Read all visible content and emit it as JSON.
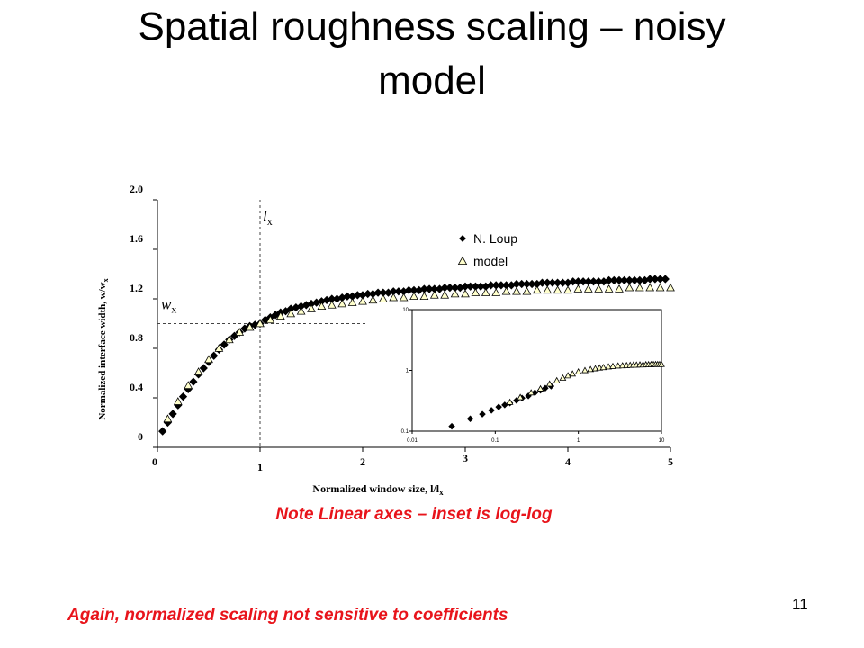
{
  "slide": {
    "title_line1": "Spatial roughness scaling – noisy",
    "title_line2": "model",
    "note": "Note Linear axes – inset is log-log",
    "footer": "Again, normalized scaling not sensitive to coefficients",
    "page_number": "11"
  },
  "colors": {
    "accent": "#e8141b",
    "marker_fill_model": "#ffffcc",
    "marker_fill_loup": "#000000"
  },
  "chart_data": [
    {
      "type": "scatter",
      "title": "",
      "xlabel": "Normalized window size, l/l",
      "xlabel_sub": "x",
      "ylabel": "Normalized interface width, w/w",
      "ylabel_sub": "x",
      "xlim": [
        0,
        5
      ],
      "ylim": [
        0,
        2
      ],
      "x_ticks": [
        0,
        1,
        2,
        3,
        4,
        5
      ],
      "x_tick_labels": [
        "0",
        "1",
        "2",
        "3",
        "4",
        "5"
      ],
      "y_ticks": [
        0,
        0.4,
        0.8,
        1.2,
        1.6,
        2.0
      ],
      "y_tick_labels": [
        "0",
        "0.4",
        "0.8",
        "1.2",
        "1.6",
        "2.0"
      ],
      "grid": false,
      "legend_position": "top-right",
      "reference_lines": {
        "vertical_x": 1,
        "vertical_label": "l",
        "vertical_label_sub": "x",
        "horizontal_y": 1,
        "horizontal_label": "w",
        "horizontal_label_sub": "x"
      },
      "series": [
        {
          "name": "N. Loup",
          "marker": "diamond",
          "x": [
            0.05,
            0.1,
            0.15,
            0.2,
            0.25,
            0.3,
            0.35,
            0.4,
            0.45,
            0.5,
            0.55,
            0.6,
            0.65,
            0.7,
            0.75,
            0.8,
            0.85,
            0.9,
            0.95,
            1.0,
            1.05,
            1.1,
            1.15,
            1.2,
            1.25,
            1.3,
            1.35,
            1.4,
            1.45,
            1.5,
            1.55,
            1.6,
            1.65,
            1.7,
            1.75,
            1.8,
            1.85,
            1.9,
            1.95,
            2.0,
            2.05,
            2.1,
            2.15,
            2.2,
            2.25,
            2.3,
            2.35,
            2.4,
            2.45,
            2.5,
            2.55,
            2.6,
            2.65,
            2.7,
            2.75,
            2.8,
            2.85,
            2.9,
            2.95,
            3.0,
            3.05,
            3.1,
            3.15,
            3.2,
            3.25,
            3.3,
            3.35,
            3.4,
            3.45,
            3.5,
            3.55,
            3.6,
            3.65,
            3.7,
            3.75,
            3.8,
            3.85,
            3.9,
            3.95,
            4.0,
            4.05,
            4.1,
            4.15,
            4.2,
            4.25,
            4.3,
            4.35,
            4.4,
            4.45,
            4.5,
            4.55,
            4.6,
            4.65,
            4.7,
            4.75,
            4.8,
            4.85,
            4.9,
            4.95
          ],
          "y": [
            0.13,
            0.2,
            0.27,
            0.34,
            0.41,
            0.47,
            0.53,
            0.59,
            0.64,
            0.69,
            0.74,
            0.79,
            0.83,
            0.87,
            0.9,
            0.93,
            0.96,
            0.98,
            0.99,
            1.0,
            1.03,
            1.05,
            1.07,
            1.09,
            1.1,
            1.12,
            1.13,
            1.14,
            1.15,
            1.16,
            1.17,
            1.18,
            1.19,
            1.2,
            1.2,
            1.21,
            1.22,
            1.22,
            1.23,
            1.23,
            1.24,
            1.24,
            1.25,
            1.25,
            1.25,
            1.26,
            1.26,
            1.26,
            1.27,
            1.27,
            1.27,
            1.28,
            1.28,
            1.28,
            1.28,
            1.29,
            1.29,
            1.29,
            1.29,
            1.3,
            1.3,
            1.3,
            1.3,
            1.3,
            1.31,
            1.31,
            1.31,
            1.31,
            1.31,
            1.32,
            1.32,
            1.32,
            1.32,
            1.32,
            1.33,
            1.33,
            1.33,
            1.33,
            1.33,
            1.33,
            1.34,
            1.34,
            1.34,
            1.34,
            1.34,
            1.34,
            1.34,
            1.35,
            1.35,
            1.35,
            1.35,
            1.35,
            1.35,
            1.35,
            1.35,
            1.36,
            1.36,
            1.36,
            1.36
          ]
        },
        {
          "name": "model",
          "marker": "triangle",
          "x": [
            0.1,
            0.2,
            0.3,
            0.4,
            0.5,
            0.6,
            0.7,
            0.8,
            0.9,
            1.0,
            1.1,
            1.2,
            1.3,
            1.4,
            1.5,
            1.6,
            1.7,
            1.8,
            1.9,
            2.0,
            2.1,
            2.2,
            2.3,
            2.4,
            2.5,
            2.6,
            2.7,
            2.8,
            2.9,
            3.0,
            3.1,
            3.2,
            3.3,
            3.4,
            3.5,
            3.6,
            3.7,
            3.8,
            3.9,
            4.0,
            4.1,
            4.2,
            4.3,
            4.4,
            4.5,
            4.6,
            4.7,
            4.8,
            4.9,
            5.0
          ],
          "y": [
            0.23,
            0.37,
            0.5,
            0.61,
            0.71,
            0.8,
            0.87,
            0.93,
            0.97,
            1.0,
            1.03,
            1.06,
            1.08,
            1.1,
            1.12,
            1.14,
            1.15,
            1.16,
            1.17,
            1.18,
            1.19,
            1.2,
            1.21,
            1.21,
            1.22,
            1.22,
            1.23,
            1.23,
            1.24,
            1.24,
            1.25,
            1.25,
            1.25,
            1.26,
            1.26,
            1.26,
            1.27,
            1.27,
            1.27,
            1.27,
            1.28,
            1.28,
            1.28,
            1.28,
            1.28,
            1.29,
            1.29,
            1.29,
            1.29,
            1.29
          ]
        }
      ]
    },
    {
      "type": "scatter",
      "title": "",
      "xscale": "log",
      "yscale": "log",
      "xlim": [
        0.01,
        10
      ],
      "ylim": [
        0.1,
        10
      ],
      "x_ticks": [
        0.01,
        0.1,
        1,
        10
      ],
      "x_tick_labels": [
        "0.01",
        "0.1",
        "1",
        "10"
      ],
      "y_ticks": [
        0.1,
        1,
        10
      ],
      "y_tick_labels": [
        "0.1",
        "1",
        "10"
      ],
      "grid": false,
      "series": [
        {
          "name": "N. Loup",
          "marker": "diamond",
          "x": [
            0.03,
            0.05,
            0.07,
            0.09,
            0.11,
            0.13,
            0.15,
            0.18,
            0.21,
            0.25,
            0.3,
            0.35,
            0.4,
            0.47
          ],
          "y": [
            0.12,
            0.16,
            0.19,
            0.22,
            0.25,
            0.27,
            0.29,
            0.32,
            0.35,
            0.38,
            0.43,
            0.47,
            0.51,
            0.55
          ]
        },
        {
          "name": "model",
          "marker": "triangle",
          "x": [
            0.15,
            0.2,
            0.27,
            0.35,
            0.45,
            0.55,
            0.65,
            0.75,
            0.85,
            1.0,
            1.2,
            1.4,
            1.6,
            1.8,
            2.0,
            2.3,
            2.6,
            3.0,
            3.4,
            3.8,
            4.2,
            4.6,
            5.0,
            5.5,
            6.0,
            6.5,
            7.0,
            7.5,
            8.0,
            8.5,
            9.0,
            9.5,
            10.0
          ],
          "y": [
            0.3,
            0.36,
            0.43,
            0.5,
            0.6,
            0.68,
            0.75,
            0.82,
            0.88,
            0.95,
            1.0,
            1.04,
            1.07,
            1.1,
            1.12,
            1.15,
            1.17,
            1.19,
            1.2,
            1.21,
            1.22,
            1.23,
            1.23,
            1.24,
            1.24,
            1.25,
            1.25,
            1.25,
            1.26,
            1.26,
            1.26,
            1.26,
            1.26
          ]
        }
      ]
    }
  ]
}
